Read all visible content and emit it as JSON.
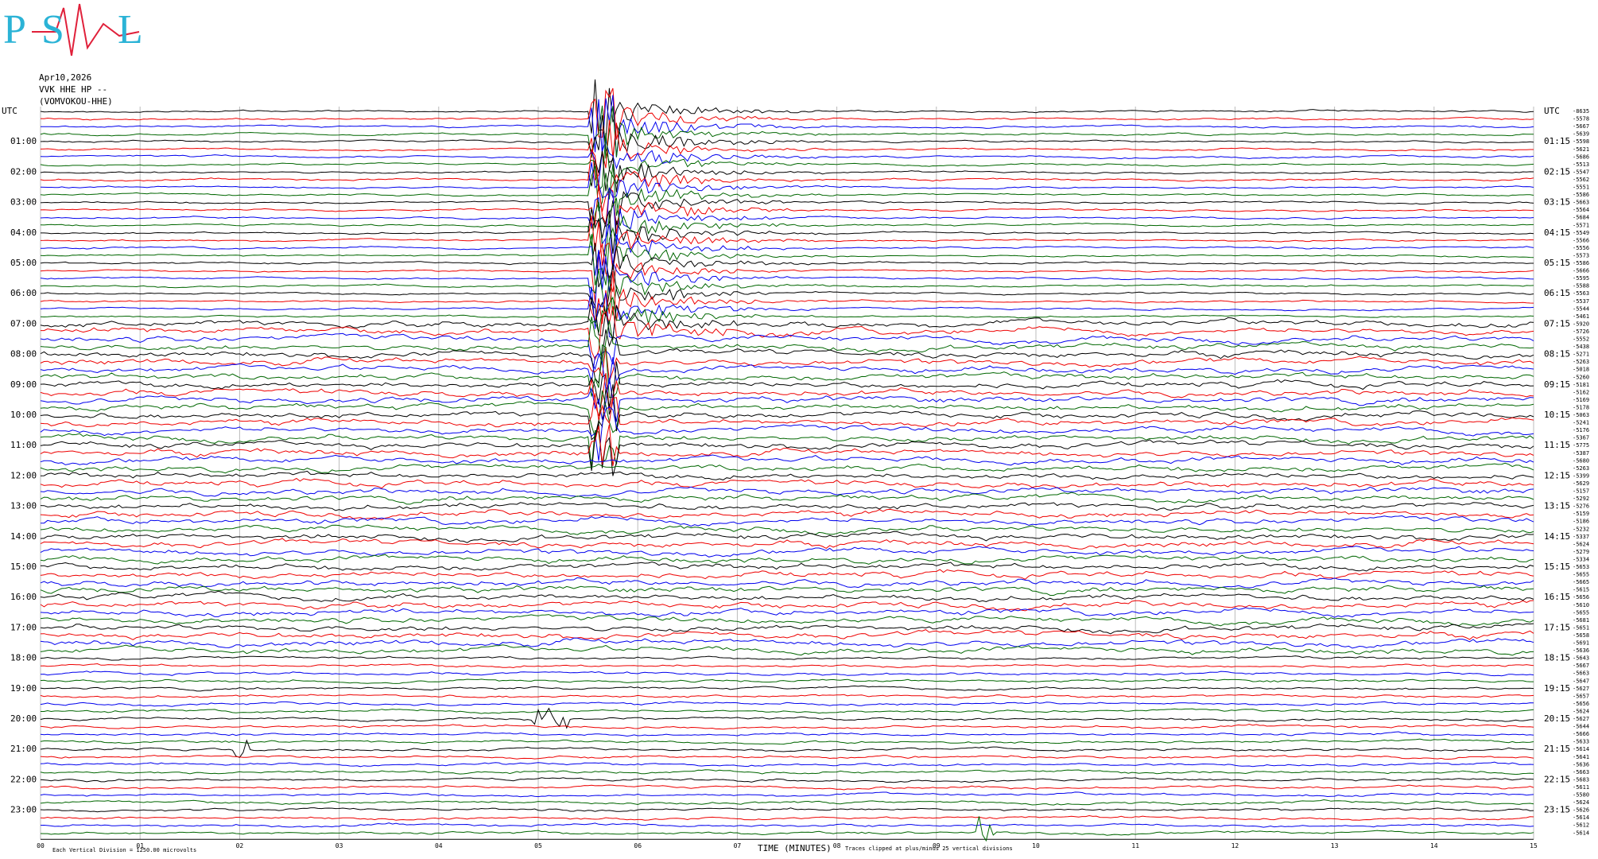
{
  "header": {
    "logo": [
      "P",
      "S",
      "L"
    ],
    "date": "Apr10,2026",
    "station": "VVK HHE HP --",
    "site": "(VOMVOKOU-HHE)"
  },
  "plot": {
    "left_labels": [
      "UTC",
      "01:00",
      "02:00",
      "03:00",
      "04:00",
      "05:00",
      "06:00",
      "07:00",
      "08:00",
      "09:00",
      "10:00",
      "11:00",
      "12:00",
      "13:00",
      "14:00",
      "15:00",
      "16:00",
      "17:00",
      "18:00",
      "19:00",
      "20:00",
      "21:00",
      "22:00",
      "23:00"
    ],
    "right_labels": [
      "UTC",
      "01:15",
      "02:15",
      "03:15",
      "04:15",
      "05:15",
      "06:15",
      "07:15",
      "08:15",
      "09:15",
      "10:15",
      "11:15",
      "12:15",
      "13:15",
      "14:15",
      "15:15",
      "16:15",
      "17:15",
      "18:15",
      "19:15",
      "20:15",
      "21:15",
      "22:15",
      "23:15"
    ],
    "row_values": [
      -8635,
      -5578,
      -5667,
      -5639,
      -5598,
      -5621,
      -5686,
      -5513,
      -5547,
      -5562,
      -5551,
      -5586,
      -5663,
      -5564,
      -5684,
      -5571,
      -5549,
      -5566,
      -5556,
      -5573,
      -5586,
      -5666,
      -5595,
      -5588,
      -5563,
      -5537,
      -5544,
      -5461,
      -5920,
      -5726,
      -5552,
      -5438,
      -5271,
      -5263,
      -5018,
      -5260,
      -5181,
      -5162,
      -5169,
      -5178,
      -5063,
      -5241,
      -5176,
      -5367,
      -5775,
      -5387,
      -5680,
      -5263,
      -5399,
      -5629,
      -5157,
      -5292,
      -5276,
      -5159,
      -5186,
      -5232,
      -5337,
      -5624,
      -5279,
      -5334,
      -5653,
      -5655,
      -5665,
      -5615,
      -5656,
      -5610,
      -5655,
      -5681,
      -5651,
      -5658,
      -5691,
      -5636,
      -5643,
      -5667,
      -5663,
      -5647,
      -5627,
      -5657,
      -5656,
      -5624,
      -5627,
      -5644,
      -5666,
      -5633,
      -5614,
      -5641,
      -5636,
      -5663,
      -5683,
      -5611,
      -5580,
      -5624,
      -5626,
      -5614,
      -5612,
      -5614
    ],
    "x_labels": [
      "00",
      "01",
      "02",
      "03",
      "04",
      "05",
      "06",
      "07",
      "08",
      "09",
      "10",
      "11",
      "12",
      "13",
      "14",
      "15"
    ],
    "x_axis_title": "TIME (MINUTES)",
    "scale_note": "Each Vertical Division = 1250.00 microvolts",
    "clip_note": "Traces clipped at plus/minus 25 vertical divisions"
  }
}
